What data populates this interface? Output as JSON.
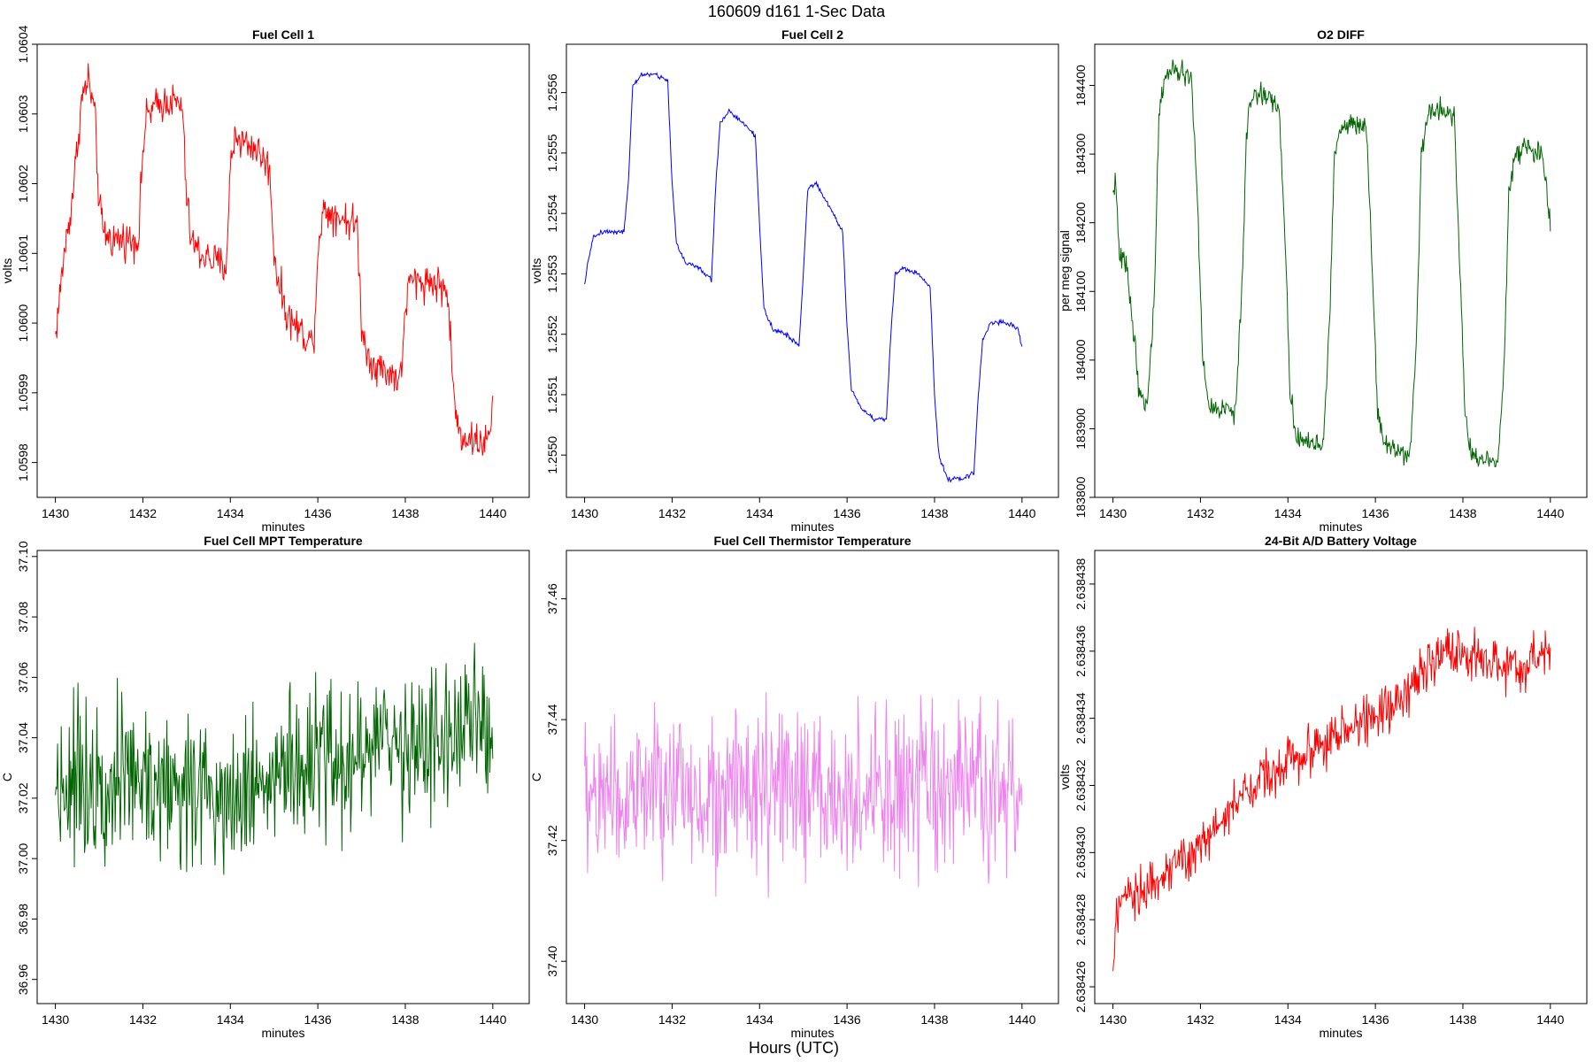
{
  "page": {
    "title": "160609   d161   1-Sec Data",
    "x_caption": "Hours (UTC)"
  },
  "chart_data": [
    {
      "type": "line",
      "title": "Fuel Cell 1",
      "xlabel": "minutes",
      "ylabel": "volts",
      "xlim": [
        1430,
        1440
      ],
      "ylim": [
        1.05975,
        1.0604
      ],
      "x_ticks": [
        1430,
        1432,
        1434,
        1436,
        1438,
        1440
      ],
      "x_tick_labels": [
        "1430",
        "1432",
        "1434",
        "1436",
        "1438",
        "1440"
      ],
      "y_ticks": [
        1.0598,
        1.0599,
        1.06,
        1.0601,
        1.0602,
        1.0603,
        1.0604
      ],
      "y_tick_labels": [
        "1.0598",
        "1.0599",
        "1.0600",
        "1.0601",
        "1.0602",
        "1.0603",
        "1.0604"
      ],
      "color": "#ff0000",
      "noise": 2.3e-05,
      "x": [
        1430.0,
        1430.2,
        1430.35,
        1430.45,
        1430.6,
        1430.75,
        1430.9,
        1431.0,
        1431.1,
        1431.3,
        1431.6,
        1431.9,
        1432.0,
        1432.1,
        1432.3,
        1432.6,
        1432.9,
        1433.0,
        1433.1,
        1433.3,
        1433.6,
        1433.9,
        1434.0,
        1434.1,
        1434.3,
        1434.6,
        1434.9,
        1435.0,
        1435.1,
        1435.3,
        1435.6,
        1435.9,
        1436.0,
        1436.1,
        1436.3,
        1436.6,
        1436.9,
        1437.0,
        1437.1,
        1437.3,
        1437.6,
        1437.9,
        1438.0,
        1438.1,
        1438.3,
        1438.6,
        1438.9,
        1439.0,
        1439.1,
        1439.2,
        1439.3,
        1439.6,
        1439.9,
        1440.0
      ],
      "y": [
        1.05998,
        1.0601,
        1.06016,
        1.06022,
        1.06032,
        1.06035,
        1.0603,
        1.06017,
        1.06013,
        1.06012,
        1.06012,
        1.06012,
        1.06025,
        1.0603,
        1.06031,
        1.06032,
        1.06031,
        1.06018,
        1.06012,
        1.0601,
        1.06009,
        1.06008,
        1.06022,
        1.06027,
        1.06026,
        1.06025,
        1.06022,
        1.0601,
        1.06006,
        1.06001,
        1.05999,
        1.05997,
        1.0601,
        1.06016,
        1.06016,
        1.06015,
        1.06014,
        1.06,
        1.05996,
        1.05994,
        1.05993,
        1.05992,
        1.06002,
        1.06006,
        1.06006,
        1.06006,
        1.06005,
        1.06002,
        1.0599,
        1.05985,
        1.05984,
        1.05983,
        1.05983,
        1.05988
      ]
    },
    {
      "type": "line",
      "title": "Fuel Cell 2",
      "xlabel": "minutes",
      "ylabel": "volts",
      "xlim": [
        1430,
        1440
      ],
      "ylim": [
        1.25493,
        1.25568
      ],
      "x_ticks": [
        1430,
        1432,
        1434,
        1436,
        1438,
        1440
      ],
      "x_tick_labels": [
        "1430",
        "1432",
        "1434",
        "1436",
        "1438",
        "1440"
      ],
      "y_ticks": [
        1.255,
        1.2551,
        1.2552,
        1.2553,
        1.2554,
        1.2555,
        1.2556
      ],
      "y_tick_labels": [
        "1.2550",
        "1.2551",
        "1.2552",
        "1.2553",
        "1.2554",
        "1.2555",
        "1.2556"
      ],
      "color": "#0000ff",
      "noise": 3.5e-06,
      "x": [
        1430.0,
        1430.1,
        1430.2,
        1430.4,
        1430.7,
        1430.9,
        1431.0,
        1431.1,
        1431.3,
        1431.6,
        1431.9,
        1432.0,
        1432.1,
        1432.3,
        1432.6,
        1432.9,
        1433.0,
        1433.1,
        1433.3,
        1433.6,
        1433.9,
        1434.0,
        1434.1,
        1434.3,
        1434.6,
        1434.9,
        1435.0,
        1435.1,
        1435.3,
        1435.6,
        1435.9,
        1436.0,
        1436.1,
        1436.3,
        1436.6,
        1436.9,
        1437.0,
        1437.1,
        1437.3,
        1437.6,
        1437.9,
        1438.0,
        1438.1,
        1438.3,
        1438.6,
        1438.9,
        1439.0,
        1439.1,
        1439.3,
        1439.6,
        1439.9,
        1440.0
      ],
      "y": [
        1.25528,
        1.25533,
        1.25536,
        1.25537,
        1.25537,
        1.25537,
        1.25545,
        1.25561,
        1.25563,
        1.25563,
        1.25562,
        1.25545,
        1.25535,
        1.25532,
        1.25531,
        1.25529,
        1.25545,
        1.25555,
        1.25557,
        1.25555,
        1.25553,
        1.25538,
        1.25524,
        1.25521,
        1.2552,
        1.25518,
        1.2553,
        1.25544,
        1.25545,
        1.25541,
        1.25537,
        1.25521,
        1.25511,
        1.25508,
        1.25506,
        1.25506,
        1.2552,
        1.2553,
        1.25531,
        1.2553,
        1.25528,
        1.2551,
        1.255,
        1.25496,
        1.25496,
        1.25497,
        1.2551,
        1.25519,
        1.25522,
        1.25522,
        1.25521,
        1.25518
      ]
    },
    {
      "type": "line",
      "title": "O2 DIFF",
      "xlabel": "minutes",
      "ylabel": "per meg signal",
      "xlim": [
        1430,
        1440
      ],
      "ylim": [
        183800,
        184460
      ],
      "x_ticks": [
        1430,
        1432,
        1434,
        1436,
        1438,
        1440
      ],
      "x_tick_labels": [
        "1430",
        "1432",
        "1434",
        "1436",
        "1438",
        "1440"
      ],
      "y_ticks": [
        183800,
        183900,
        184000,
        184100,
        184200,
        184300,
        184400
      ],
      "y_tick_labels": [
        "183800",
        "183900",
        "184000",
        "184100",
        "184200",
        "184300",
        "184400"
      ],
      "color": "#006400",
      "noise": 14,
      "x": [
        1430.0,
        1430.05,
        1430.15,
        1430.3,
        1430.45,
        1430.6,
        1430.8,
        1430.95,
        1431.05,
        1431.2,
        1431.5,
        1431.8,
        1431.95,
        1432.05,
        1432.2,
        1432.5,
        1432.8,
        1432.95,
        1433.05,
        1433.2,
        1433.5,
        1433.8,
        1433.95,
        1434.05,
        1434.2,
        1434.5,
        1434.8,
        1434.95,
        1435.05,
        1435.2,
        1435.5,
        1435.8,
        1435.95,
        1436.05,
        1436.2,
        1436.5,
        1436.8,
        1436.95,
        1437.05,
        1437.2,
        1437.5,
        1437.8,
        1437.95,
        1438.05,
        1438.2,
        1438.5,
        1438.8,
        1438.95,
        1439.05,
        1439.2,
        1439.5,
        1439.8,
        1440.0
      ],
      "y": [
        184240,
        184265,
        184150,
        184140,
        184060,
        183950,
        183940,
        184100,
        184360,
        184415,
        184420,
        184410,
        184200,
        184000,
        183930,
        183930,
        183925,
        184100,
        184330,
        184390,
        184385,
        184370,
        184150,
        183950,
        183890,
        183880,
        183875,
        184050,
        184280,
        184340,
        184345,
        184340,
        184100,
        183930,
        183880,
        183870,
        183865,
        184050,
        184300,
        184360,
        184365,
        184360,
        184100,
        183920,
        183860,
        183855,
        183855,
        184000,
        184250,
        184300,
        184310,
        184300,
        184200
      ]
    },
    {
      "type": "line",
      "title": "Fuel Cell MPT Temperature",
      "xlabel": "minutes",
      "ylabel": "C",
      "xlim": [
        1430,
        1440
      ],
      "ylim": [
        36.952,
        37.102
      ],
      "x_ticks": [
        1430,
        1432,
        1434,
        1436,
        1438,
        1440
      ],
      "x_tick_labels": [
        "1430",
        "1432",
        "1434",
        "1436",
        "1438",
        "1440"
      ],
      "y_ticks": [
        36.96,
        36.98,
        37.0,
        37.02,
        37.04,
        37.06,
        37.08,
        37.1
      ],
      "y_tick_labels": [
        "36.96",
        "36.98",
        "37.00",
        "37.02",
        "37.04",
        "37.06",
        "37.08",
        "37.10"
      ],
      "color": "#006400",
      "noise": 0.022,
      "x": [
        1430,
        1431,
        1432,
        1433,
        1434,
        1435,
        1436,
        1437,
        1438,
        1439,
        1440
      ],
      "y": [
        37.025,
        37.028,
        37.026,
        37.023,
        37.022,
        37.028,
        37.03,
        37.035,
        37.038,
        37.04,
        37.045
      ]
    },
    {
      "type": "line",
      "title": "Fuel Cell Thermistor Temperature",
      "xlabel": "minutes",
      "ylabel": "C",
      "xlim": [
        1430,
        1440
      ],
      "ylim": [
        37.393,
        37.468
      ],
      "x_ticks": [
        1430,
        1432,
        1434,
        1436,
        1438,
        1440
      ],
      "x_tick_labels": [
        "1430",
        "1432",
        "1434",
        "1436",
        "1438",
        "1440"
      ],
      "y_ticks": [
        37.4,
        37.42,
        37.44,
        37.46
      ],
      "y_tick_labels": [
        "37.40",
        "37.42",
        "37.44",
        "37.46"
      ],
      "color": "#ee82ee",
      "noise": 0.0115,
      "x": [
        1430,
        1432,
        1434,
        1436,
        1438,
        1440
      ],
      "y": [
        37.427,
        37.428,
        37.428,
        37.427,
        37.428,
        37.428
      ]
    },
    {
      "type": "line",
      "title": "24-Bit A/D Battery Voltage",
      "xlabel": "minutes",
      "ylabel": "volts",
      "xlim": [
        1430,
        1440
      ],
      "ylim": [
        2.6384255,
        2.638439
      ],
      "x_ticks": [
        1430,
        1432,
        1434,
        1436,
        1438,
        1440
      ],
      "x_tick_labels": [
        "1430",
        "1432",
        "1434",
        "1436",
        "1438",
        "1440"
      ],
      "y_ticks": [
        2.638426,
        2.638428,
        2.63843,
        2.638432,
        2.638434,
        2.638436,
        2.638438
      ],
      "y_tick_labels": [
        "2.638426",
        "2.638428",
        "2.638430",
        "2.638432",
        "2.638434",
        "2.638436",
        "2.638438"
      ],
      "color": "#ff0000",
      "noise": 6.5e-07,
      "x": [
        1430.0,
        1430.1,
        1430.5,
        1431.0,
        1431.5,
        1432.0,
        1432.5,
        1433.0,
        1433.5,
        1434.0,
        1434.5,
        1435.0,
        1435.5,
        1436.0,
        1436.5,
        1437.0,
        1437.5,
        1438.0,
        1438.5,
        1439.0,
        1439.5,
        1440.0
      ],
      "y": [
        2.6384265,
        2.6384282,
        2.6384288,
        2.6384292,
        2.6384297,
        2.6384302,
        2.638431,
        2.6384317,
        2.6384323,
        2.6384328,
        2.638433,
        2.6384334,
        2.6384337,
        2.6384341,
        2.6384345,
        2.6384352,
        2.6384358,
        2.638436,
        2.6384357,
        2.6384354,
        2.6384356,
        2.638436
      ]
    }
  ]
}
